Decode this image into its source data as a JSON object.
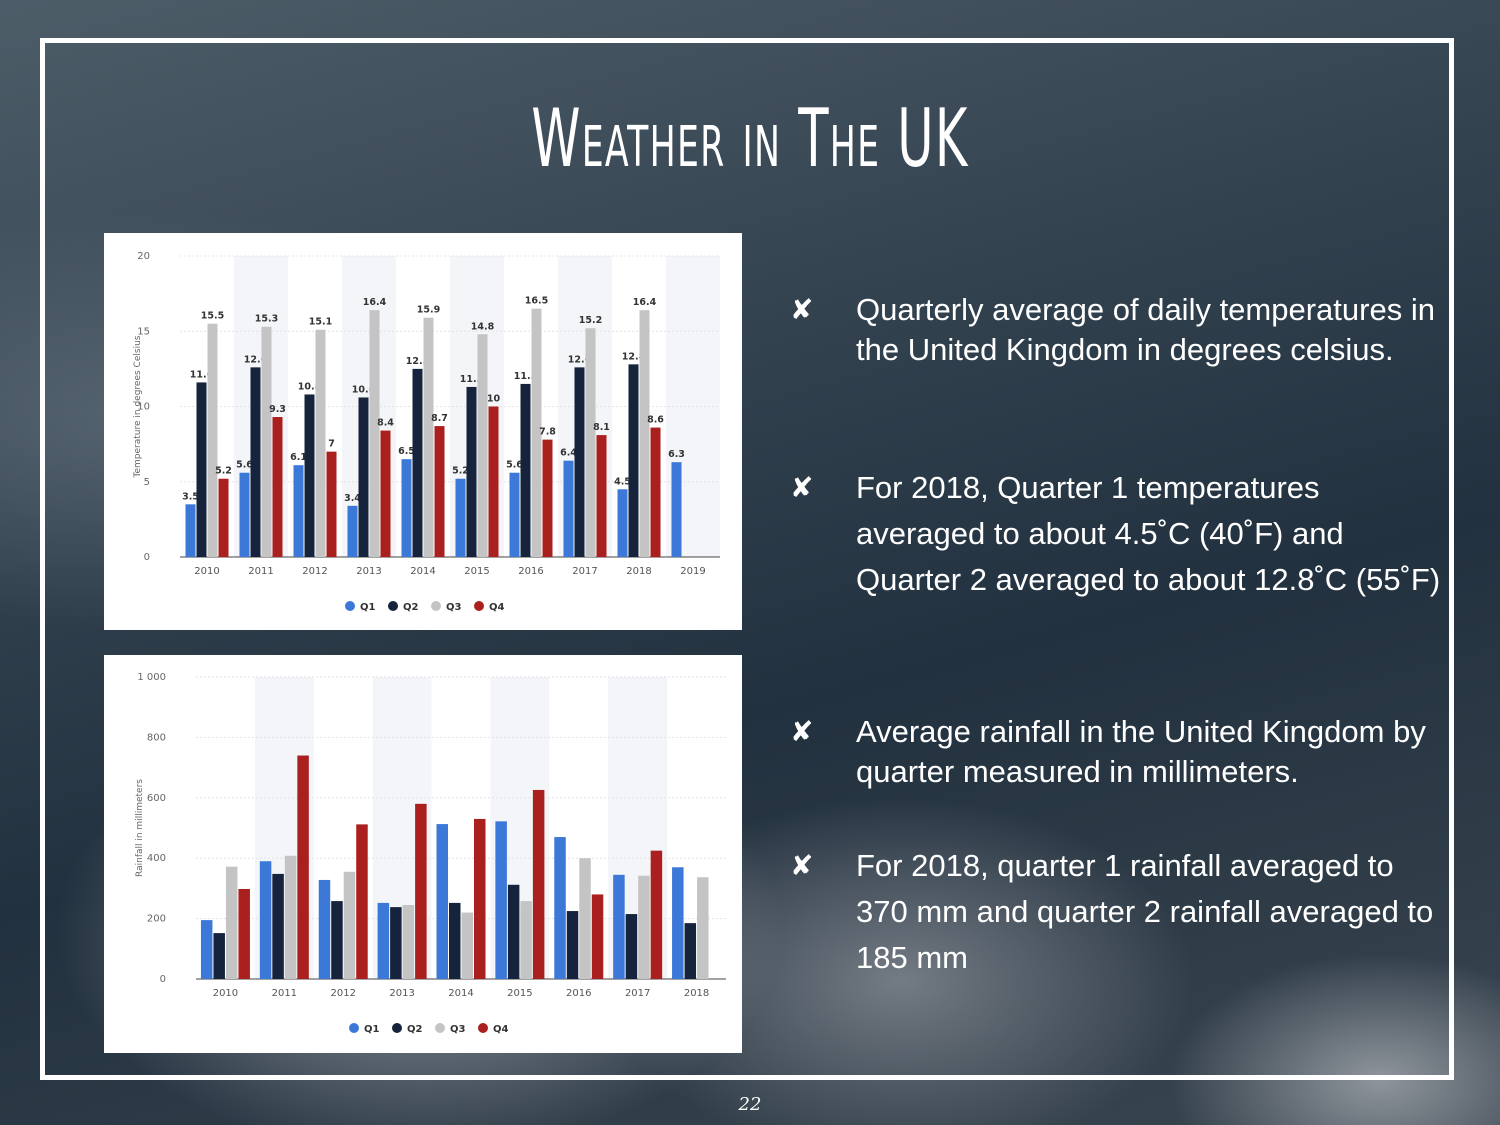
{
  "slide": {
    "title": "Weather in The UK",
    "page_number": "22"
  },
  "bullets": [
    {
      "marker": "✘",
      "text": "Quarterly average of daily temperatures in the United Kingdom in degrees celsius."
    },
    {
      "marker": "✘",
      "text": "For 2018, Quarter 1 temperatures averaged to about 4.5˚C (40˚F) and Quarter 2 averaged to about 12.8˚C (55˚F)"
    },
    {
      "marker": "✘",
      "text": "Average rainfall in the United Kingdom by quarter measured in millimeters."
    },
    {
      "marker": "✘",
      "text": "For 2018, quarter 1 rainfall averaged to 370 mm and quarter 2 rainfall averaged to 185 mm"
    }
  ],
  "chart_data": [
    {
      "type": "bar",
      "title": "",
      "xlabel": "",
      "ylabel": "Temperature in degrees Celsius",
      "ylim": [
        0,
        20
      ],
      "yticks": [
        0,
        5,
        10,
        15,
        20
      ],
      "ytick_labels": [
        "0",
        "5",
        "10",
        "15",
        "20"
      ],
      "categories": [
        "2010",
        "2011",
        "2012",
        "2013",
        "2014",
        "2015",
        "2016",
        "2017",
        "2018",
        "2019"
      ],
      "data_labels": true,
      "grid": true,
      "legend": "bottom-center",
      "series": [
        {
          "name": "Q1",
          "color": "#3b78d8",
          "values": [
            3.5,
            5.6,
            6.1,
            3.4,
            6.5,
            5.2,
            5.6,
            6.4,
            4.5,
            6.3
          ]
        },
        {
          "name": "Q2",
          "color": "#15243c",
          "values": [
            11.6,
            12.6,
            10.8,
            10.6,
            12.5,
            11.3,
            11.5,
            12.6,
            12.8,
            null
          ]
        },
        {
          "name": "Q3",
          "color": "#c4c4c4",
          "values": [
            15.5,
            15.3,
            15.1,
            16.4,
            15.9,
            14.8,
            16.5,
            15.2,
            16.4,
            null
          ]
        },
        {
          "name": "Q4",
          "color": "#a9201e",
          "values": [
            5.2,
            9.3,
            7,
            8.4,
            8.7,
            10,
            7.8,
            8.1,
            8.6,
            null
          ]
        }
      ]
    },
    {
      "type": "bar",
      "title": "",
      "xlabel": "",
      "ylabel": "Rainfall in millimeters",
      "ylim": [
        0,
        1000
      ],
      "yticks": [
        0,
        200,
        400,
        600,
        800,
        1000
      ],
      "ytick_labels": [
        "0",
        "200",
        "400",
        "600",
        "800",
        "1 000"
      ],
      "categories": [
        "2010",
        "2011",
        "2012",
        "2013",
        "2014",
        "2015",
        "2016",
        "2017",
        "2018"
      ],
      "data_labels": false,
      "grid": true,
      "legend": "bottom-center",
      "series": [
        {
          "name": "Q1",
          "color": "#3b78d8",
          "values": [
            195,
            390,
            328,
            252,
            513,
            522,
            470,
            345,
            370
          ]
        },
        {
          "name": "Q2",
          "color": "#15243c",
          "values": [
            152,
            348,
            258,
            238,
            252,
            312,
            225,
            215,
            185
          ]
        },
        {
          "name": "Q3",
          "color": "#c4c4c4",
          "values": [
            372,
            408,
            355,
            245,
            220,
            258,
            400,
            342,
            337
          ]
        },
        {
          "name": "Q4",
          "color": "#a9201e",
          "values": [
            298,
            740,
            512,
            580,
            530,
            626,
            280,
            425,
            null
          ]
        }
      ]
    }
  ]
}
